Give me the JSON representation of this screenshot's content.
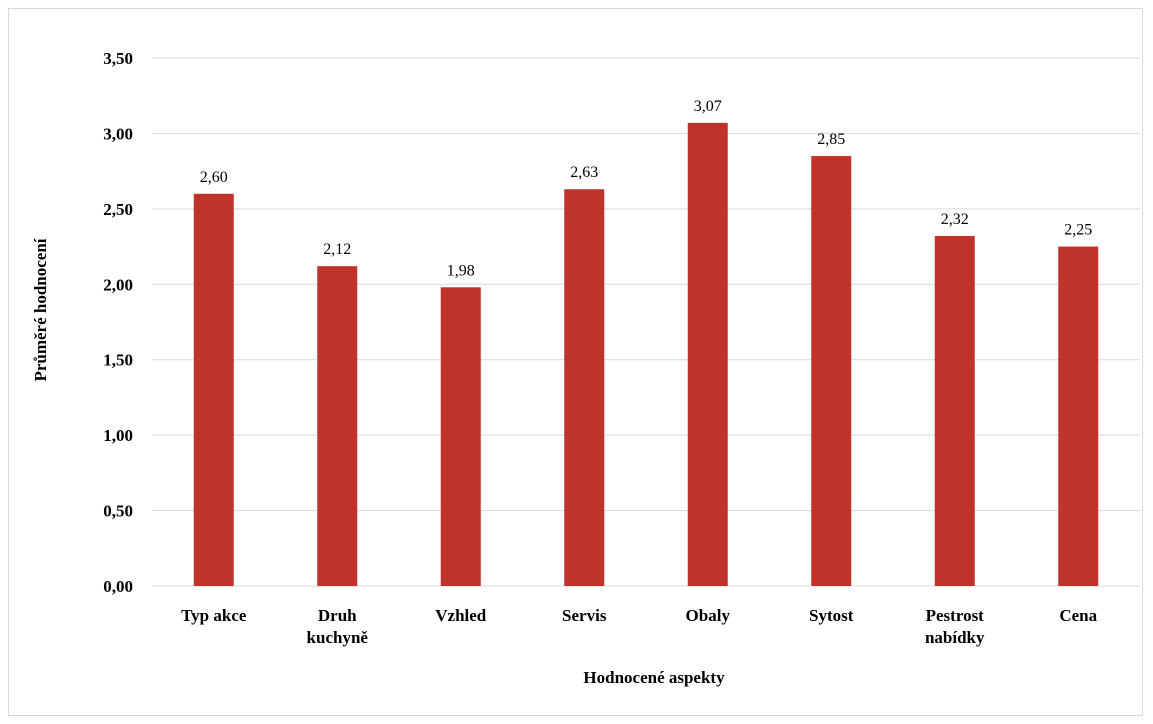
{
  "chart_data": {
    "type": "bar",
    "categories": [
      [
        "Typ akce"
      ],
      [
        "Druh",
        "kuchyně"
      ],
      [
        "Vzhled"
      ],
      [
        "Servis"
      ],
      [
        "Obaly"
      ],
      [
        "Sytost"
      ],
      [
        "Pestrost",
        "nabídky"
      ],
      [
        "Cena"
      ]
    ],
    "values": [
      2.6,
      2.12,
      1.98,
      2.63,
      3.07,
      2.85,
      2.32,
      2.25
    ],
    "value_labels": [
      "2,60",
      "2,12",
      "1,98",
      "2,63",
      "3,07",
      "2,85",
      "2,32",
      "2,25"
    ],
    "y_ticks": [
      0,
      0.5,
      1,
      1.5,
      2,
      2.5,
      3,
      3.5
    ],
    "y_tick_labels": [
      "0,00",
      "0,50",
      "1,00",
      "1,50",
      "2,00",
      "2,50",
      "3,00",
      "3,50"
    ],
    "ylim": [
      0,
      3.5
    ],
    "xlabel": "Hodnocené aspekty",
    "ylabel": "Průměré hodnocení",
    "grid": true,
    "bar_color": "#c0332a",
    "grid_color": "#d9d9d9"
  }
}
